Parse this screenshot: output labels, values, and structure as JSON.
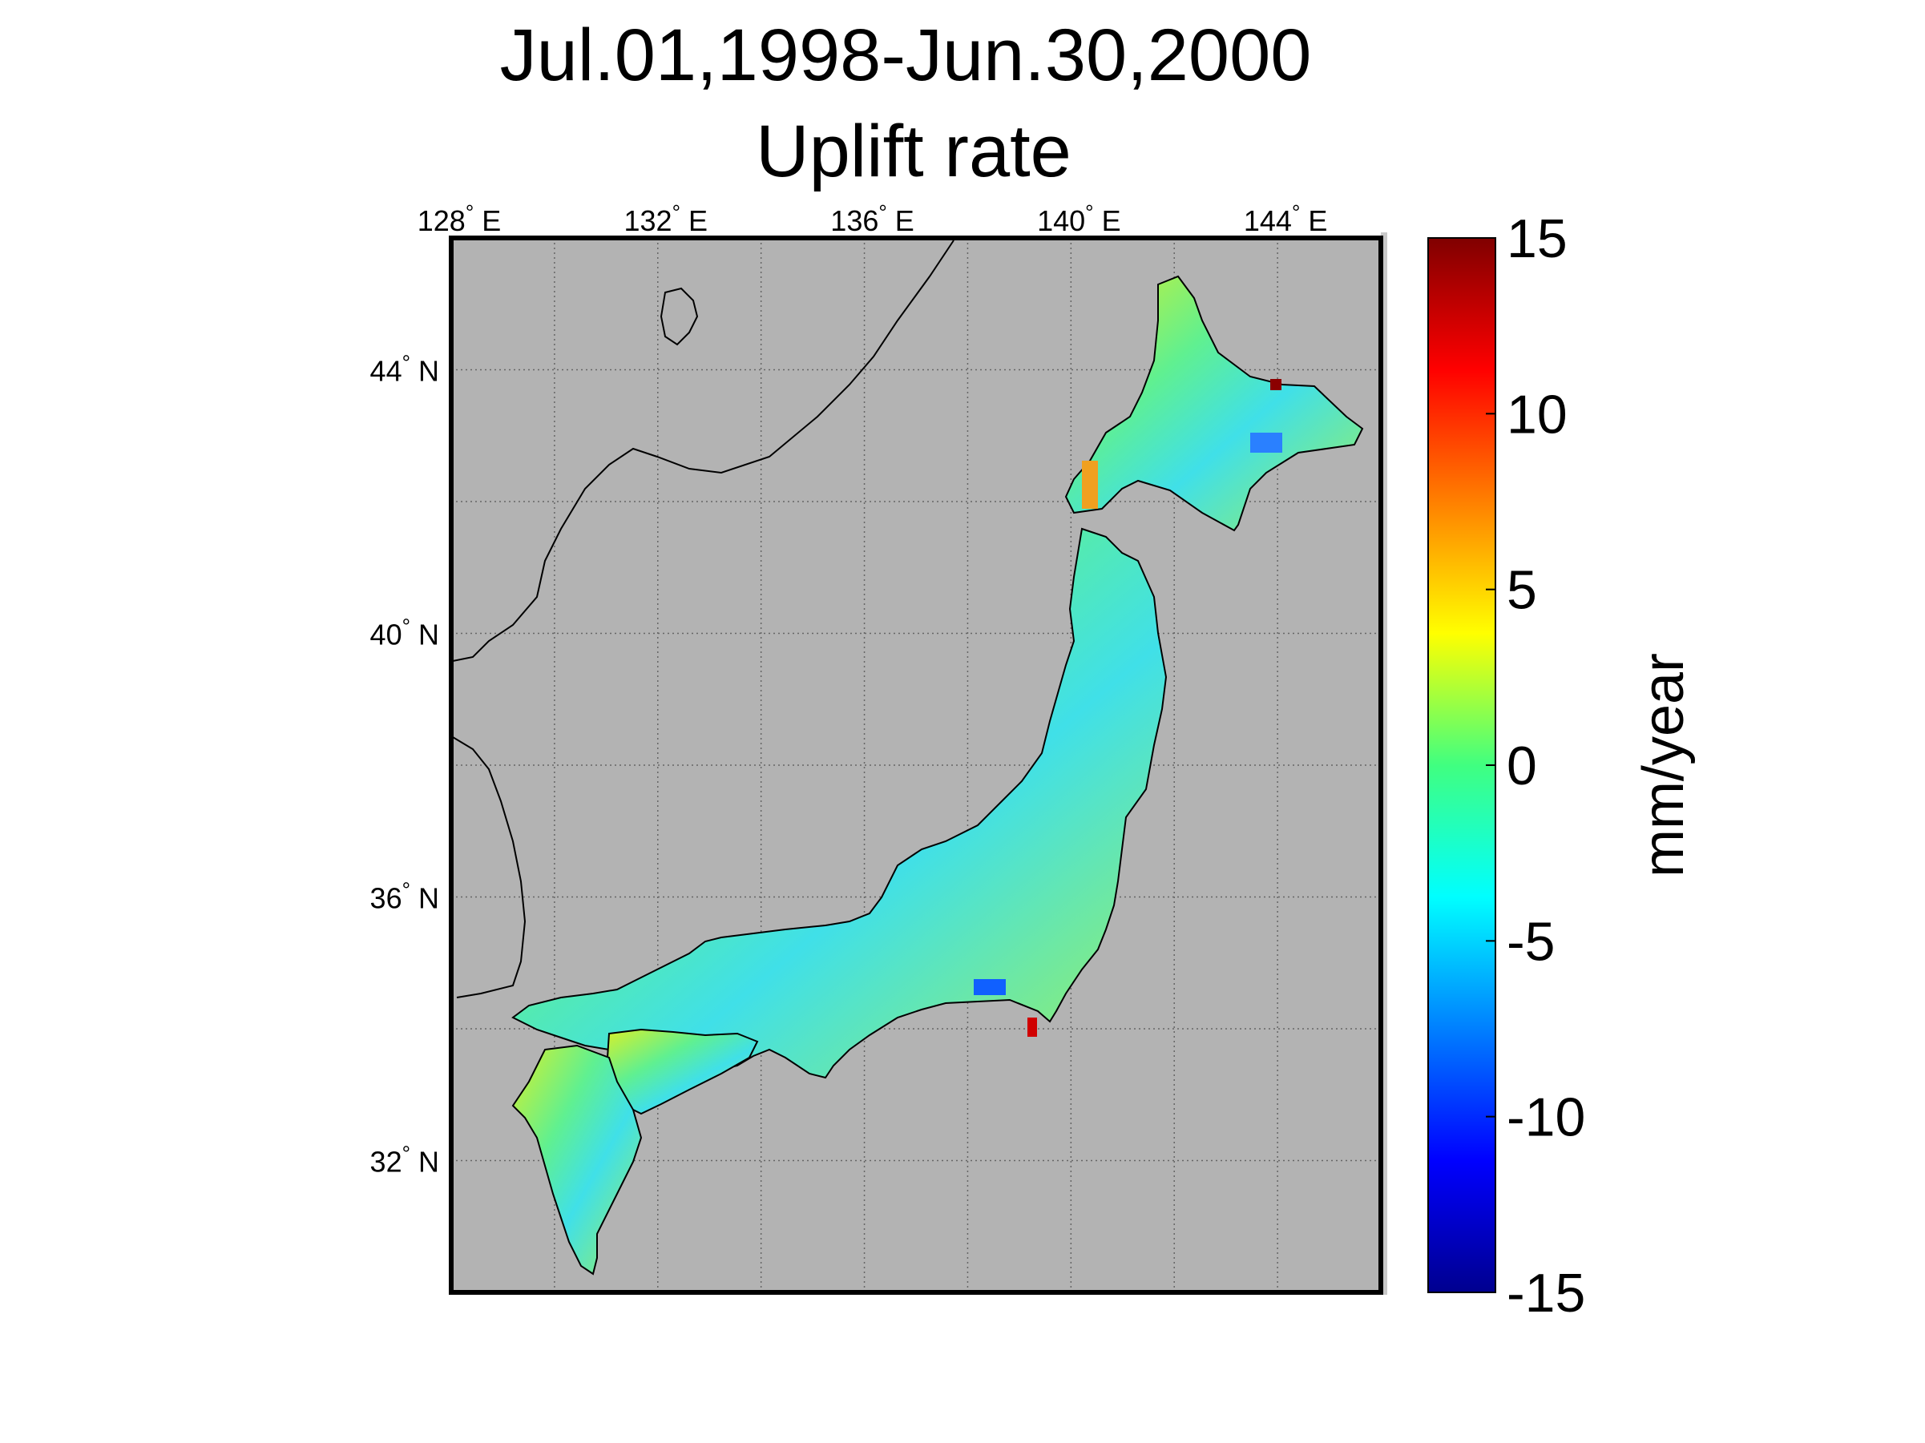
{
  "title": {
    "line1": "Jul.01,1998-Jun.30,2000",
    "line2": "Uplift rate"
  },
  "map": {
    "background_color": "#b3b3b3",
    "land_outline_color": "#000000",
    "lon_ticks": [
      {
        "value": 128,
        "label": "128",
        "suffix": "E"
      },
      {
        "value": 132,
        "label": "132",
        "suffix": "E"
      },
      {
        "value": 136,
        "label": "136",
        "suffix": "E"
      },
      {
        "value": 140,
        "label": "140",
        "suffix": "E"
      },
      {
        "value": 144,
        "label": "144",
        "suffix": "E"
      }
    ],
    "lat_ticks": [
      {
        "value": 44,
        "label": "44",
        "suffix": "N"
      },
      {
        "value": 40,
        "label": "40",
        "suffix": "N"
      },
      {
        "value": 36,
        "label": "36",
        "suffix": "N"
      },
      {
        "value": 32,
        "label": "32",
        "suffix": "N"
      }
    ],
    "lon_range": [
      128,
      146
    ],
    "lat_range": [
      30,
      46
    ]
  },
  "colorbar": {
    "min": -15,
    "max": 15,
    "ticks": [
      "15",
      "10",
      "5",
      "0",
      "-5",
      "-10",
      "-15"
    ],
    "unit": "mm/year",
    "colormap": "jet"
  }
}
